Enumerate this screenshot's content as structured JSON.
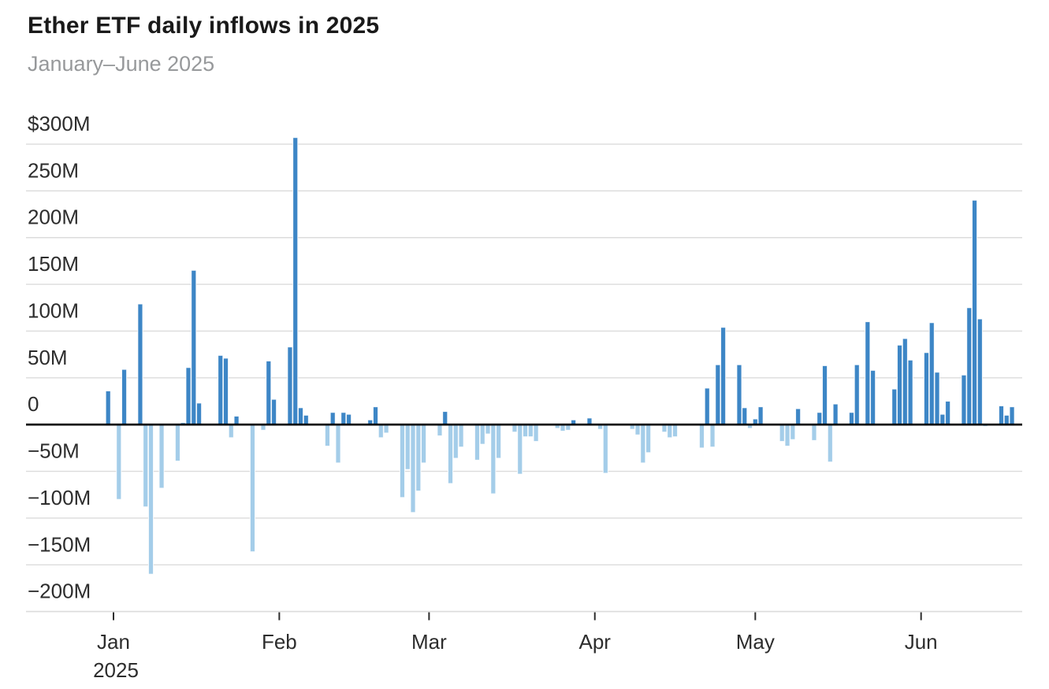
{
  "header": {
    "title": "Ether ETF daily inflows in 2025",
    "subtitle": "January–June 2025"
  },
  "colors": {
    "positive_bar": "#3d86c6",
    "negative_bar": "#a4cde9",
    "grid_line": "#dcdcdc",
    "zero_line": "#000000",
    "axis_label": "#2d2d2d",
    "tick_mark": "#2d2d2d",
    "title_text": "#1a1a1a",
    "subtitle_text": "#97999b",
    "background": "#ffffff"
  },
  "chart_data": {
    "type": "bar",
    "title": "Ether ETF daily inflows in 2025",
    "subtitle": "January–June 2025",
    "xlabel": "",
    "ylabel": "",
    "unit": "$M",
    "ylim": [
      -215,
      318
    ],
    "grid": "horizontal",
    "legend_position": "none",
    "y_ticks": [
      {
        "label": "$300M",
        "value": 300
      },
      {
        "label": "250M",
        "value": 250
      },
      {
        "label": "200M",
        "value": 200
      },
      {
        "label": "150M",
        "value": 150
      },
      {
        "label": "100M",
        "value": 100
      },
      {
        "label": "50M",
        "value": 50
      },
      {
        "label": "0",
        "value": 0
      },
      {
        "label": "−50M",
        "value": -50
      },
      {
        "label": "−100M",
        "value": -100
      },
      {
        "label": "−150M",
        "value": -150
      },
      {
        "label": "−200M",
        "value": -200
      }
    ],
    "x_months": [
      {
        "label": "Jan",
        "sublabel": "2025",
        "day": 0
      },
      {
        "label": "Feb",
        "sublabel": "",
        "day": 31
      },
      {
        "label": "Mar",
        "sublabel": "",
        "day": 59
      },
      {
        "label": "Apr",
        "sublabel": "",
        "day": 90
      },
      {
        "label": "May",
        "sublabel": "",
        "day": 120
      },
      {
        "label": "Jun",
        "sublabel": "",
        "day": 151
      }
    ],
    "series": [
      {
        "date": "Dec 31",
        "day": -1,
        "value": 36
      },
      {
        "date": "Jan 2",
        "day": 1,
        "value": -80
      },
      {
        "date": "Jan 3",
        "day": 2,
        "value": 59
      },
      {
        "date": "Jan 6",
        "day": 5,
        "value": 129
      },
      {
        "date": "Jan 7",
        "day": 6,
        "value": -88
      },
      {
        "date": "Jan 8",
        "day": 7,
        "value": -160
      },
      {
        "date": "Jan 10",
        "day": 9,
        "value": -68
      },
      {
        "date": "Jan 13",
        "day": 12,
        "value": -39
      },
      {
        "date": "Jan 14",
        "day": 13,
        "value": 2
      },
      {
        "date": "Jan 15",
        "day": 14,
        "value": 61
      },
      {
        "date": "Jan 16",
        "day": 15,
        "value": 165
      },
      {
        "date": "Jan 17",
        "day": 16,
        "value": 23
      },
      {
        "date": "Jan 21",
        "day": 20,
        "value": 74
      },
      {
        "date": "Jan 22",
        "day": 21,
        "value": 71
      },
      {
        "date": "Jan 23",
        "day": 22,
        "value": -14
      },
      {
        "date": "Jan 24",
        "day": 23,
        "value": 9
      },
      {
        "date": "Jan 27",
        "day": 26,
        "value": -136
      },
      {
        "date": "Jan 29",
        "day": 28,
        "value": -6
      },
      {
        "date": "Jan 30",
        "day": 29,
        "value": 68
      },
      {
        "date": "Jan 31",
        "day": 30,
        "value": 27
      },
      {
        "date": "Feb 3",
        "day": 33,
        "value": 83
      },
      {
        "date": "Feb 4",
        "day": 34,
        "value": 307
      },
      {
        "date": "Feb 5",
        "day": 35,
        "value": 18
      },
      {
        "date": "Feb 6",
        "day": 36,
        "value": 10
      },
      {
        "date": "Feb 10",
        "day": 40,
        "value": -23
      },
      {
        "date": "Feb 11",
        "day": 41,
        "value": 13
      },
      {
        "date": "Feb 12",
        "day": 42,
        "value": -41
      },
      {
        "date": "Feb 13",
        "day": 43,
        "value": 13
      },
      {
        "date": "Feb 14",
        "day": 44,
        "value": 11
      },
      {
        "date": "Feb 18",
        "day": 48,
        "value": 5
      },
      {
        "date": "Feb 19",
        "day": 49,
        "value": 19
      },
      {
        "date": "Feb 20",
        "day": 50,
        "value": -14
      },
      {
        "date": "Feb 21",
        "day": 51,
        "value": -9
      },
      {
        "date": "Feb 24",
        "day": 54,
        "value": -78
      },
      {
        "date": "Feb 25",
        "day": 55,
        "value": -48
      },
      {
        "date": "Feb 26",
        "day": 56,
        "value": -94
      },
      {
        "date": "Feb 27",
        "day": 57,
        "value": -71
      },
      {
        "date": "Feb 28",
        "day": 58,
        "value": -41
      },
      {
        "date": "Mar 3",
        "day": 61,
        "value": -12
      },
      {
        "date": "Mar 4",
        "day": 62,
        "value": 14
      },
      {
        "date": "Mar 5",
        "day": 63,
        "value": -63
      },
      {
        "date": "Mar 6",
        "day": 64,
        "value": -36
      },
      {
        "date": "Mar 7",
        "day": 65,
        "value": -24
      },
      {
        "date": "Mar 10",
        "day": 68,
        "value": -38
      },
      {
        "date": "Mar 11",
        "day": 69,
        "value": -21
      },
      {
        "date": "Mar 12",
        "day": 70,
        "value": -10
      },
      {
        "date": "Mar 13",
        "day": 71,
        "value": -74
      },
      {
        "date": "Mar 14",
        "day": 72,
        "value": -36
      },
      {
        "date": "Mar 17",
        "day": 75,
        "value": -8
      },
      {
        "date": "Mar 18",
        "day": 76,
        "value": -53
      },
      {
        "date": "Mar 19",
        "day": 77,
        "value": -13
      },
      {
        "date": "Mar 20",
        "day": 78,
        "value": -13
      },
      {
        "date": "Mar 21",
        "day": 79,
        "value": -18
      },
      {
        "date": "Mar 25",
        "day": 83,
        "value": -4
      },
      {
        "date": "Mar 26",
        "day": 84,
        "value": -7
      },
      {
        "date": "Mar 27",
        "day": 85,
        "value": -6
      },
      {
        "date": "Mar 28",
        "day": 86,
        "value": 5
      },
      {
        "date": "Mar 31",
        "day": 89,
        "value": 7
      },
      {
        "date": "Apr 2",
        "day": 91,
        "value": -5
      },
      {
        "date": "Apr 3",
        "day": 92,
        "value": -52
      },
      {
        "date": "Apr 8",
        "day": 97,
        "value": -5
      },
      {
        "date": "Apr 9",
        "day": 98,
        "value": -11
      },
      {
        "date": "Apr 10",
        "day": 99,
        "value": -41
      },
      {
        "date": "Apr 11",
        "day": 100,
        "value": -30
      },
      {
        "date": "Apr 14",
        "day": 103,
        "value": -8
      },
      {
        "date": "Apr 15",
        "day": 104,
        "value": -14
      },
      {
        "date": "Apr 16",
        "day": 105,
        "value": -13
      },
      {
        "date": "Apr 21",
        "day": 110,
        "value": -25
      },
      {
        "date": "Apr 22",
        "day": 111,
        "value": 39
      },
      {
        "date": "Apr 23",
        "day": 112,
        "value": -24
      },
      {
        "date": "Apr 24",
        "day": 113,
        "value": 64
      },
      {
        "date": "Apr 25",
        "day": 114,
        "value": 104
      },
      {
        "date": "Apr 28",
        "day": 117,
        "value": 64
      },
      {
        "date": "Apr 29",
        "day": 118,
        "value": 18
      },
      {
        "date": "Apr 30",
        "day": 119,
        "value": -4
      },
      {
        "date": "May 1",
        "day": 120,
        "value": 6
      },
      {
        "date": "May 2",
        "day": 121,
        "value": 19
      },
      {
        "date": "May 6",
        "day": 125,
        "value": -18
      },
      {
        "date": "May 7",
        "day": 126,
        "value": -23
      },
      {
        "date": "May 8",
        "day": 127,
        "value": -16
      },
      {
        "date": "May 9",
        "day": 128,
        "value": 17
      },
      {
        "date": "May 12",
        "day": 131,
        "value": -17
      },
      {
        "date": "May 13",
        "day": 132,
        "value": 13
      },
      {
        "date": "May 14",
        "day": 133,
        "value": 63
      },
      {
        "date": "May 15",
        "day": 134,
        "value": -40
      },
      {
        "date": "May 16",
        "day": 135,
        "value": 22
      },
      {
        "date": "May 19",
        "day": 138,
        "value": 13
      },
      {
        "date": "May 20",
        "day": 139,
        "value": 64
      },
      {
        "date": "May 22",
        "day": 141,
        "value": 110
      },
      {
        "date": "May 23",
        "day": 142,
        "value": 58
      },
      {
        "date": "May 27",
        "day": 146,
        "value": 38
      },
      {
        "date": "May 28",
        "day": 147,
        "value": 85
      },
      {
        "date": "May 29",
        "day": 148,
        "value": 92
      },
      {
        "date": "May 30",
        "day": 149,
        "value": 69
      },
      {
        "date": "Jun 2",
        "day": 152,
        "value": 77
      },
      {
        "date": "Jun 3",
        "day": 153,
        "value": 109
      },
      {
        "date": "Jun 4",
        "day": 154,
        "value": 56
      },
      {
        "date": "Jun 5",
        "day": 155,
        "value": 11
      },
      {
        "date": "Jun 6",
        "day": 156,
        "value": 25
      },
      {
        "date": "Jun 9",
        "day": 159,
        "value": 53
      },
      {
        "date": "Jun 10",
        "day": 160,
        "value": 125
      },
      {
        "date": "Jun 11",
        "day": 161,
        "value": 240
      },
      {
        "date": "Jun 12",
        "day": 162,
        "value": 113
      },
      {
        "date": "Jun 13",
        "day": 163,
        "value": -2
      },
      {
        "date": "Jun 16",
        "day": 166,
        "value": 20
      },
      {
        "date": "Jun 17",
        "day": 167,
        "value": 10
      },
      {
        "date": "Jun 18",
        "day": 168,
        "value": 19
      }
    ]
  }
}
